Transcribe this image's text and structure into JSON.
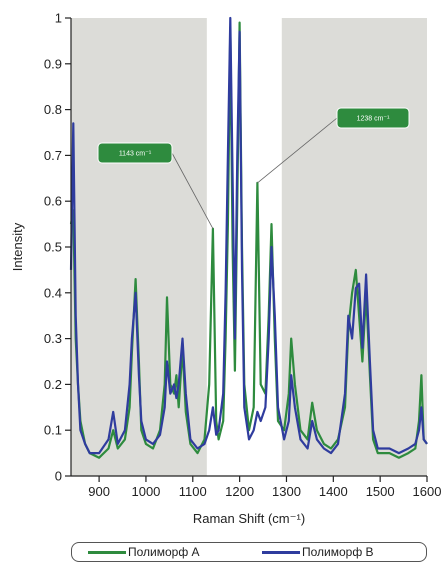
{
  "chart_data": {
    "type": "line",
    "title": "",
    "xlabel": "Raman Shift (cm⁻¹)",
    "ylabel": "Intensity",
    "xlim": [
      840,
      1600
    ],
    "ylim": [
      0,
      1
    ],
    "x_ticks": [
      "900",
      "1000",
      "1100",
      "1200",
      "1300",
      "1400",
      "1500",
      "1600"
    ],
    "y_ticks": [
      "0",
      "0.1",
      "0.2",
      "0.3",
      "0.4",
      "0.5",
      "0.6",
      "0.7",
      "0.8",
      "0.9",
      "1"
    ],
    "grid": false,
    "legend_position": "bottom",
    "shaded_regions": [
      [
        840,
        1130
      ],
      [
        1290,
        1600
      ]
    ],
    "annotations": [
      {
        "text": "1143 cm⁻¹",
        "x": 1143,
        "y": 0.54
      },
      {
        "text": "1238 cm⁻¹",
        "x": 1238,
        "y": 0.64
      }
    ],
    "series": [
      {
        "name": "Полиморф A",
        "color": "#2e8b3e",
        "points": [
          [
            840,
            0.55
          ],
          [
            845,
            0.58
          ],
          [
            850,
            0.3
          ],
          [
            855,
            0.2
          ],
          [
            860,
            0.12
          ],
          [
            870,
            0.07
          ],
          [
            880,
            0.05
          ],
          [
            900,
            0.04
          ],
          [
            920,
            0.06
          ],
          [
            930,
            0.1
          ],
          [
            940,
            0.06
          ],
          [
            955,
            0.08
          ],
          [
            965,
            0.15
          ],
          [
            970,
            0.27
          ],
          [
            978,
            0.43
          ],
          [
            985,
            0.25
          ],
          [
            990,
            0.1
          ],
          [
            1000,
            0.07
          ],
          [
            1015,
            0.06
          ],
          [
            1030,
            0.1
          ],
          [
            1040,
            0.2
          ],
          [
            1045,
            0.39
          ],
          [
            1052,
            0.2
          ],
          [
            1060,
            0.18
          ],
          [
            1065,
            0.22
          ],
          [
            1070,
            0.15
          ],
          [
            1078,
            0.28
          ],
          [
            1085,
            0.14
          ],
          [
            1095,
            0.07
          ],
          [
            1110,
            0.05
          ],
          [
            1125,
            0.08
          ],
          [
            1135,
            0.2
          ],
          [
            1143,
            0.54
          ],
          [
            1150,
            0.12
          ],
          [
            1155,
            0.08
          ],
          [
            1165,
            0.12
          ],
          [
            1170,
            0.3
          ],
          [
            1175,
            0.55
          ],
          [
            1180,
            0.98
          ],
          [
            1185,
            0.5
          ],
          [
            1190,
            0.23
          ],
          [
            1195,
            0.6
          ],
          [
            1200,
            0.99
          ],
          [
            1205,
            0.5
          ],
          [
            1210,
            0.2
          ],
          [
            1220,
            0.1
          ],
          [
            1230,
            0.15
          ],
          [
            1238,
            0.64
          ],
          [
            1245,
            0.2
          ],
          [
            1255,
            0.18
          ],
          [
            1262,
            0.35
          ],
          [
            1268,
            0.55
          ],
          [
            1275,
            0.3
          ],
          [
            1282,
            0.12
          ],
          [
            1295,
            0.1
          ],
          [
            1305,
            0.18
          ],
          [
            1310,
            0.3
          ],
          [
            1318,
            0.2
          ],
          [
            1330,
            0.1
          ],
          [
            1345,
            0.08
          ],
          [
            1355,
            0.16
          ],
          [
            1365,
            0.1
          ],
          [
            1380,
            0.07
          ],
          [
            1395,
            0.06
          ],
          [
            1410,
            0.08
          ],
          [
            1425,
            0.15
          ],
          [
            1432,
            0.32
          ],
          [
            1440,
            0.4
          ],
          [
            1448,
            0.45
          ],
          [
            1455,
            0.35
          ],
          [
            1462,
            0.25
          ],
          [
            1470,
            0.4
          ],
          [
            1478,
            0.22
          ],
          [
            1485,
            0.08
          ],
          [
            1495,
            0.05
          ],
          [
            1520,
            0.05
          ],
          [
            1540,
            0.04
          ],
          [
            1560,
            0.05
          ],
          [
            1575,
            0.06
          ],
          [
            1583,
            0.12
          ],
          [
            1588,
            0.22
          ],
          [
            1593,
            0.08
          ],
          [
            1600,
            0.07
          ]
        ]
      },
      {
        "name": "Полиморф B",
        "color": "#2f3c9e",
        "points": [
          [
            840,
            0.45
          ],
          [
            845,
            0.77
          ],
          [
            850,
            0.35
          ],
          [
            855,
            0.2
          ],
          [
            860,
            0.1
          ],
          [
            870,
            0.07
          ],
          [
            880,
            0.05
          ],
          [
            900,
            0.05
          ],
          [
            920,
            0.08
          ],
          [
            930,
            0.14
          ],
          [
            940,
            0.07
          ],
          [
            955,
            0.1
          ],
          [
            965,
            0.2
          ],
          [
            970,
            0.3
          ],
          [
            978,
            0.4
          ],
          [
            985,
            0.22
          ],
          [
            990,
            0.12
          ],
          [
            1000,
            0.08
          ],
          [
            1015,
            0.07
          ],
          [
            1030,
            0.09
          ],
          [
            1040,
            0.15
          ],
          [
            1045,
            0.25
          ],
          [
            1052,
            0.18
          ],
          [
            1060,
            0.2
          ],
          [
            1065,
            0.17
          ],
          [
            1070,
            0.2
          ],
          [
            1078,
            0.3
          ],
          [
            1085,
            0.18
          ],
          [
            1095,
            0.08
          ],
          [
            1110,
            0.06
          ],
          [
            1125,
            0.07
          ],
          [
            1135,
            0.1
          ],
          [
            1143,
            0.15
          ],
          [
            1150,
            0.09
          ],
          [
            1155,
            0.1
          ],
          [
            1165,
            0.18
          ],
          [
            1170,
            0.4
          ],
          [
            1175,
            0.7
          ],
          [
            1180,
            1.0
          ],
          [
            1185,
            0.65
          ],
          [
            1190,
            0.3
          ],
          [
            1195,
            0.7
          ],
          [
            1200,
            0.97
          ],
          [
            1205,
            0.45
          ],
          [
            1210,
            0.15
          ],
          [
            1220,
            0.08
          ],
          [
            1230,
            0.1
          ],
          [
            1238,
            0.14
          ],
          [
            1245,
            0.12
          ],
          [
            1255,
            0.15
          ],
          [
            1262,
            0.3
          ],
          [
            1268,
            0.5
          ],
          [
            1275,
            0.35
          ],
          [
            1282,
            0.15
          ],
          [
            1295,
            0.08
          ],
          [
            1305,
            0.12
          ],
          [
            1310,
            0.22
          ],
          [
            1318,
            0.15
          ],
          [
            1330,
            0.08
          ],
          [
            1345,
            0.06
          ],
          [
            1355,
            0.12
          ],
          [
            1365,
            0.08
          ],
          [
            1380,
            0.06
          ],
          [
            1395,
            0.05
          ],
          [
            1410,
            0.07
          ],
          [
            1425,
            0.18
          ],
          [
            1432,
            0.35
          ],
          [
            1440,
            0.3
          ],
          [
            1448,
            0.41
          ],
          [
            1455,
            0.42
          ],
          [
            1462,
            0.28
          ],
          [
            1470,
            0.44
          ],
          [
            1478,
            0.25
          ],
          [
            1485,
            0.1
          ],
          [
            1495,
            0.06
          ],
          [
            1520,
            0.06
          ],
          [
            1540,
            0.05
          ],
          [
            1560,
            0.06
          ],
          [
            1575,
            0.07
          ],
          [
            1583,
            0.1
          ],
          [
            1588,
            0.15
          ],
          [
            1593,
            0.08
          ],
          [
            1600,
            0.07
          ]
        ]
      }
    ]
  }
}
